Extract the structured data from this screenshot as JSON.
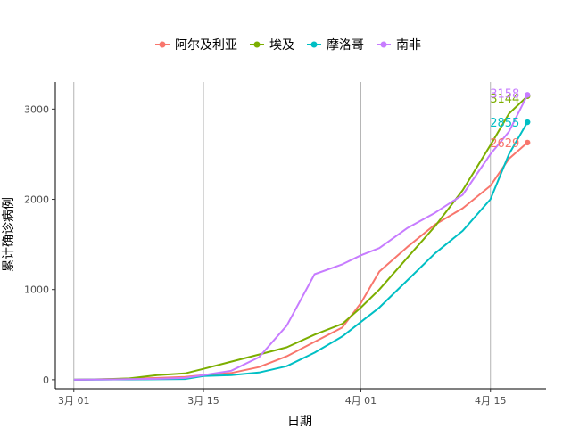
{
  "chart_data": {
    "type": "line",
    "xlabel": "日期",
    "ylabel": "累计确诊病例",
    "x_dates": [
      "2020-03-01",
      "2020-03-04",
      "2020-03-07",
      "2020-03-10",
      "2020-03-13",
      "2020-03-15",
      "2020-03-18",
      "2020-03-21",
      "2020-03-24",
      "2020-03-27",
      "2020-03-30",
      "2020-04-01",
      "2020-04-03",
      "2020-04-06",
      "2020-04-09",
      "2020-04-12",
      "2020-04-15",
      "2020-04-17",
      "2020-04-19"
    ],
    "x_ticks": [
      {
        "date": "2020-03-01",
        "label": "3月 01"
      },
      {
        "date": "2020-03-15",
        "label": "3月 15"
      },
      {
        "date": "2020-04-01",
        "label": "4月 01"
      },
      {
        "date": "2020-04-15",
        "label": "4月 15"
      }
    ],
    "y_ticks": [
      0,
      1000,
      2000,
      3000
    ],
    "ylim": [
      -100,
      3300
    ],
    "xlim": [
      "2020-02-28",
      "2020-04-21"
    ],
    "grid": "vertical-major",
    "legend_position": "top",
    "series": [
      {
        "name": "阿尔及利亚",
        "color": "#F8766D",
        "end_label": "2629",
        "values": [
          0,
          5,
          12,
          20,
          30,
          50,
          75,
          140,
          260,
          420,
          580,
          850,
          1200,
          1470,
          1720,
          1900,
          2150,
          2450,
          2629
        ]
      },
      {
        "name": "埃及",
        "color": "#7CAE00",
        "end_label": "3144",
        "values": [
          0,
          5,
          15,
          50,
          70,
          120,
          200,
          280,
          360,
          500,
          620,
          800,
          1000,
          1350,
          1700,
          2100,
          2600,
          2950,
          3144
        ]
      },
      {
        "name": "摩洛哥",
        "color": "#00BFC4",
        "end_label": "2855",
        "values": [
          0,
          2,
          3,
          5,
          8,
          40,
          50,
          80,
          150,
          300,
          480,
          640,
          800,
          1100,
          1400,
          1650,
          2000,
          2500,
          2855
        ]
      },
      {
        "name": "南非",
        "color": "#C77CFF",
        "end_label": "3158",
        "values": [
          0,
          3,
          6,
          10,
          20,
          50,
          100,
          250,
          600,
          1170,
          1280,
          1380,
          1460,
          1680,
          1850,
          2050,
          2500,
          2750,
          3158
        ]
      }
    ]
  }
}
